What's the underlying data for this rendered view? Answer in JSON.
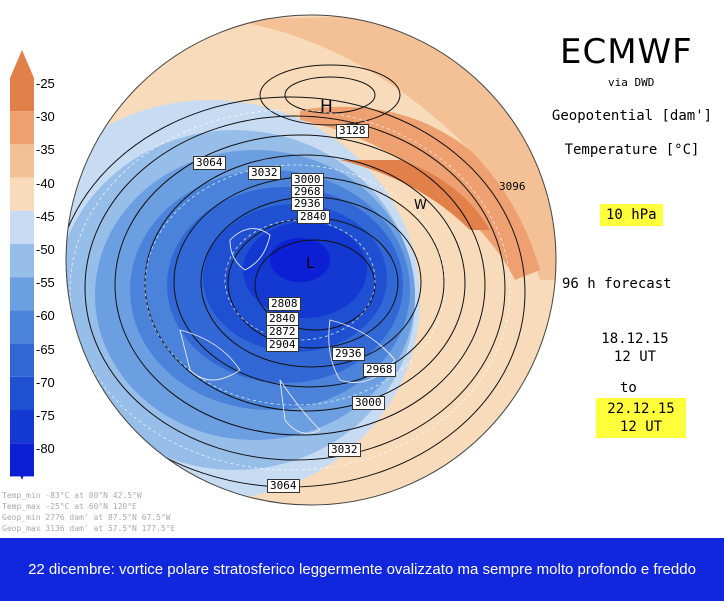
{
  "header": {
    "brand": "ECMWF",
    "source": "via DWD"
  },
  "fields": {
    "geopotential": "Geopotential [dam']",
    "temperature": "Temperature [°C]"
  },
  "level": "10 hPa",
  "forecast": "96 h forecast",
  "init": {
    "date": "18.12.15",
    "time": "12 UT"
  },
  "to_label": "to",
  "valid": {
    "date": "22.12.15",
    "time": "12 UT"
  },
  "colorbar": {
    "labels": [
      "-25",
      "-30",
      "-35",
      "-40",
      "-45",
      "-50",
      "-55",
      "-60",
      "-65",
      "-70",
      "-75",
      "-80"
    ],
    "colors": [
      "#e2804a",
      "#eea070",
      "#f3c195",
      "#f7dbbb",
      "#c7dcf3",
      "#97bde9",
      "#6c9fe1",
      "#4a83d9",
      "#3168d5",
      "#2050d2",
      "#1439d3",
      "#0c1fd4"
    ]
  },
  "map": {
    "contour_labels": [
      "3128",
      "3064",
      "3032",
      "3000",
      "2968",
      "2936",
      "2840",
      "3096",
      "2808",
      "2840",
      "2872",
      "2904",
      "2936",
      "2968",
      "3000",
      "3032",
      "3064"
    ],
    "high_label": "H",
    "warm_label": "W",
    "low_label": "L"
  },
  "footer": {
    "temp_min": "Temp_min -83°C at 80°N 42.5°W",
    "temp_max": "Temp_max -25°C at 60°N 120°E",
    "geop_min": "Geop_min 2776 dam' at 87.5°N 67.5°W",
    "extra": "Geop_max 3136 dam' at 57.5°N 177.5°E"
  },
  "caption": "22 dicembre: vortice polare stratosferico leggermente ovalizzato ma sempre molto profondo e freddo"
}
